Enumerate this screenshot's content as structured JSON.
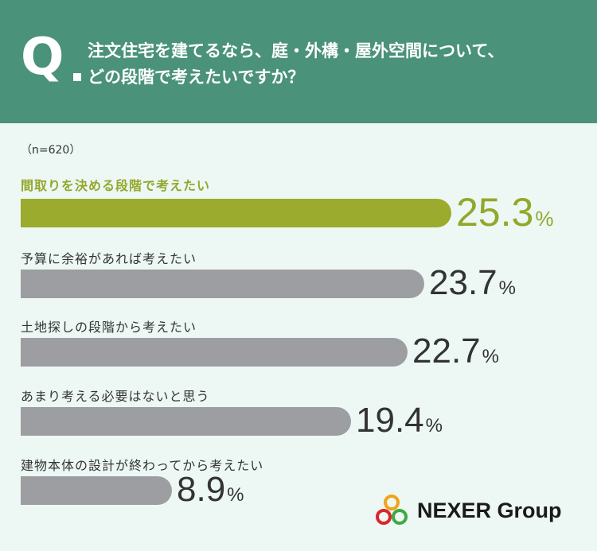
{
  "header": {
    "q": "Q",
    "lines": [
      "注文住宅を建てるなら、庭・外構・屋外空間について、",
      "どの段階で考えたいですか？"
    ]
  },
  "sample": "（n=620）",
  "chart_data": {
    "type": "bar",
    "categories": [
      "間取りを決める段階で考えたい",
      "予算に余裕があれば考えたい",
      "土地探しの段階から考えたい",
      "あまり考える必要はないと思う",
      "建物本体の設計が終わってから考えたい"
    ],
    "values": [
      25.3,
      23.7,
      22.7,
      19.4,
      8.9
    ],
    "labels": [
      "25.3",
      "23.7",
      "22.7",
      "19.4",
      "8.9"
    ],
    "unit": "%",
    "highlight_index": 0,
    "colors": {
      "highlight": "#9aab2d",
      "default": "#9d9ea1"
    }
  },
  "logo": {
    "text": "NEXER Group"
  }
}
